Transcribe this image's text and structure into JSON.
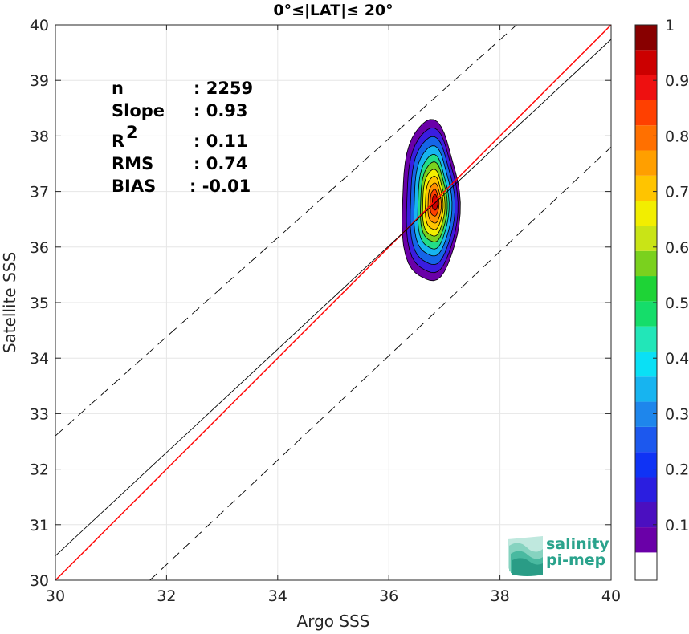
{
  "chart_data": {
    "type": "heatmap",
    "title": "0°≤|LAT|≤ 20°",
    "xlabel": "Argo SSS",
    "ylabel": "Satellite SSS",
    "xlim": [
      30,
      40
    ],
    "ylim": [
      30,
      40
    ],
    "xticks": [
      "30",
      "32",
      "34",
      "36",
      "38",
      "40"
    ],
    "yticks": [
      "30",
      "31",
      "32",
      "33",
      "34",
      "35",
      "36",
      "37",
      "38",
      "39",
      "40"
    ],
    "grid": true,
    "stats": [
      {
        "label": "n",
        "sep": ":",
        "value": "2259"
      },
      {
        "label": "Slope",
        "sep": ":",
        "value": "0.93"
      },
      {
        "label": "R",
        "sup": "2",
        "sep": ":",
        "value": "0.11"
      },
      {
        "label": "RMS",
        "sep": ":",
        "value": "0.74"
      },
      {
        "label": "BIAS",
        "sep": ":",
        "value": "-0.01"
      }
    ],
    "lines": {
      "one_to_one": {
        "color": "#ff0000",
        "points": [
          [
            30,
            30
          ],
          [
            40,
            40
          ]
        ]
      },
      "fit": {
        "color": "#000000",
        "points": [
          [
            30,
            30.44
          ],
          [
            40,
            39.74
          ]
        ]
      },
      "upper_bound": {
        "color": "#000000",
        "style": "dashed",
        "points": [
          [
            30,
            32.6
          ],
          [
            38.3,
            40
          ]
        ]
      },
      "lower_bound": {
        "color": "#000000",
        "style": "dashed",
        "points": [
          [
            31.7,
            30
          ],
          [
            40,
            37.8
          ]
        ]
      }
    },
    "density": {
      "center": [
        36.82,
        36.78
      ],
      "levels": [
        {
          "level": 0.05,
          "color": "#6a00a8",
          "rx": 0.52,
          "ry": 1.45,
          "cx": 36.74,
          "cy": 36.8
        },
        {
          "level": 0.15,
          "color": "#3a1de0",
          "rx": 0.46,
          "ry": 1.3,
          "cx": 36.76,
          "cy": 36.8
        },
        {
          "level": 0.25,
          "color": "#1565e8",
          "rx": 0.4,
          "ry": 1.15,
          "cx": 36.77,
          "cy": 36.8
        },
        {
          "level": 0.35,
          "color": "#17b4f0",
          "rx": 0.34,
          "ry": 0.99,
          "cx": 36.78,
          "cy": 36.8
        },
        {
          "level": 0.45,
          "color": "#22dd88",
          "rx": 0.28,
          "ry": 0.85,
          "cx": 36.79,
          "cy": 36.79
        },
        {
          "level": 0.55,
          "color": "#7ad11e",
          "rx": 0.24,
          "ry": 0.72,
          "cx": 36.8,
          "cy": 36.79
        },
        {
          "level": 0.65,
          "color": "#f2ee00",
          "rx": 0.2,
          "ry": 0.6,
          "cx": 36.8,
          "cy": 36.78
        },
        {
          "level": 0.72,
          "color": "#ffc400",
          "rx": 0.16,
          "ry": 0.48,
          "cx": 36.81,
          "cy": 36.78
        },
        {
          "level": 0.8,
          "color": "#ff9000",
          "rx": 0.12,
          "ry": 0.36,
          "cx": 36.82,
          "cy": 36.78
        },
        {
          "level": 0.88,
          "color": "#ff4000",
          "rx": 0.08,
          "ry": 0.24,
          "cx": 36.82,
          "cy": 36.79
        },
        {
          "level": 0.95,
          "color": "#cc0000",
          "rx": 0.05,
          "ry": 0.14,
          "cx": 36.83,
          "cy": 36.8
        }
      ]
    },
    "colorbar": {
      "range": [
        0,
        1
      ],
      "ticks": [
        "0.1",
        "0.2",
        "0.3",
        "0.4",
        "0.5",
        "0.6",
        "0.7",
        "0.8",
        "0.9",
        "1"
      ],
      "tick_values": [
        0.1,
        0.2,
        0.3,
        0.4,
        0.5,
        0.6,
        0.7,
        0.8,
        0.9,
        1.0
      ],
      "bands": [
        "#ffffff",
        "#6a00a8",
        "#4b0fc0",
        "#2b1ee0",
        "#0f33f5",
        "#1c58ee",
        "#1e86ec",
        "#17b4f0",
        "#0ae0f5",
        "#22e6b8",
        "#15dd6a",
        "#1ed336",
        "#7ad11e",
        "#c9e416",
        "#f2ee00",
        "#ffc400",
        "#ff9f00",
        "#ff7000",
        "#ff4000",
        "#ee1010",
        "#cc0000",
        "#880000"
      ]
    }
  },
  "logo": {
    "line1": "salinity",
    "line2": "pi-mep",
    "color": "#2aa38c"
  }
}
